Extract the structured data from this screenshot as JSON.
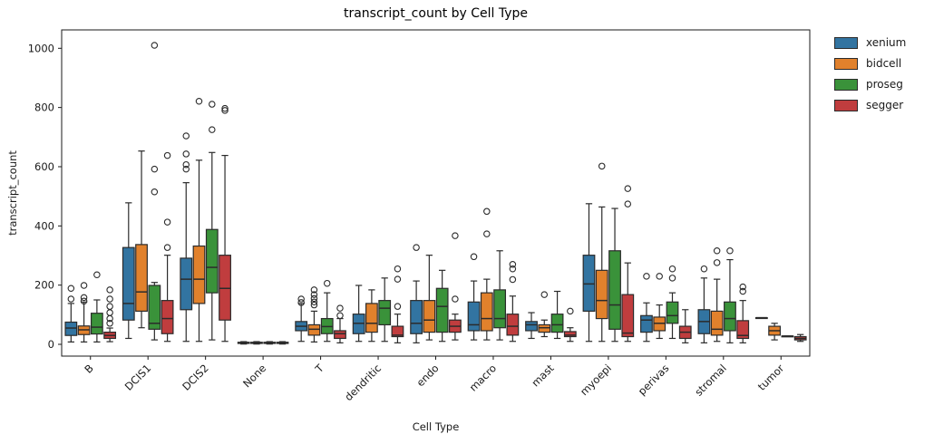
{
  "chart_data": {
    "type": "box",
    "title": "transcript_count by Cell Type",
    "xlabel": "Cell Type",
    "ylabel": "transcript_count",
    "ylim": [
      -40,
      1060
    ],
    "y_ticks": [
      0,
      200,
      400,
      600,
      800,
      1000
    ],
    "grid": false,
    "legend_position": "upper-right-outside",
    "categories": [
      "B",
      "DCIS1",
      "DCIS2",
      "None",
      "T",
      "dendritic",
      "endo",
      "macro",
      "mast",
      "myoepi",
      "perivas",
      "stromal",
      "tumor"
    ],
    "series": [
      {
        "name": "xenium",
        "color": "#3274A1",
        "boxes": [
          {
            "lo": 8,
            "q1": 30,
            "med": 55,
            "q3": 75,
            "hi": 138,
            "out": [
              153,
              189
            ]
          },
          {
            "lo": 20,
            "q1": 82,
            "med": 138,
            "q3": 327,
            "hi": 478,
            "out": []
          },
          {
            "lo": 10,
            "q1": 117,
            "med": 220,
            "q3": 291,
            "hi": 546,
            "out": [
              592,
              607,
              643,
              704
            ]
          },
          {
            "lo": 1,
            "q1": 3,
            "med": 5,
            "q3": 7,
            "hi": 9,
            "out": []
          },
          {
            "lo": 10,
            "q1": 46,
            "med": 61,
            "q3": 77,
            "hi": 138,
            "out": [
              141,
              153
            ]
          },
          {
            "lo": 10,
            "q1": 36,
            "med": 71,
            "q3": 102,
            "hi": 199,
            "out": []
          },
          {
            "lo": 5,
            "q1": 36,
            "med": 71,
            "q3": 148,
            "hi": 214,
            "out": [
              327
            ]
          },
          {
            "lo": 15,
            "q1": 46,
            "med": 66,
            "q3": 143,
            "hi": 214,
            "out": [
              296
            ]
          },
          {
            "lo": 20,
            "q1": 46,
            "med": 66,
            "q3": 77,
            "hi": 107,
            "out": []
          },
          {
            "lo": 10,
            "q1": 112,
            "med": 204,
            "q3": 301,
            "hi": 475,
            "out": []
          },
          {
            "lo": 10,
            "q1": 41,
            "med": 82,
            "q3": 97,
            "hi": 140,
            "out": [
              230
            ]
          },
          {
            "lo": 5,
            "q1": 36,
            "med": 77,
            "q3": 117,
            "hi": 224,
            "out": [
              255
            ]
          },
          {
            "lo": 90,
            "q1": 90,
            "med": 90,
            "q3": 90,
            "hi": 90,
            "out": []
          }
        ]
      },
      {
        "name": "bidcell",
        "color": "#E1812C",
        "boxes": [
          {
            "lo": 8,
            "q1": 33,
            "med": 49,
            "q3": 62,
            "hi": 143,
            "out": [
              146,
              158,
              199
            ]
          },
          {
            "lo": 56,
            "q1": 112,
            "med": 177,
            "q3": 337,
            "hi": 653,
            "out": []
          },
          {
            "lo": 10,
            "q1": 138,
            "med": 220,
            "q3": 332,
            "hi": 622,
            "out": [
              821
            ]
          },
          {
            "lo": 1,
            "q1": 3,
            "med": 5,
            "q3": 7,
            "hi": 9,
            "out": []
          },
          {
            "lo": 8,
            "q1": 31,
            "med": 51,
            "q3": 66,
            "hi": 112,
            "out": [
              133,
              143,
              155,
              168,
              184
            ]
          },
          {
            "lo": 10,
            "q1": 41,
            "med": 71,
            "q3": 138,
            "hi": 184,
            "out": []
          },
          {
            "lo": 15,
            "q1": 41,
            "med": 82,
            "q3": 148,
            "hi": 301,
            "out": []
          },
          {
            "lo": 15,
            "q1": 46,
            "med": 87,
            "q3": 174,
            "hi": 220,
            "out": [
              373,
              449
            ]
          },
          {
            "lo": 26,
            "q1": 41,
            "med": 56,
            "q3": 66,
            "hi": 82,
            "out": [
              168
            ]
          },
          {
            "lo": 10,
            "q1": 87,
            "med": 148,
            "q3": 250,
            "hi": 464,
            "out": [
              602
            ]
          },
          {
            "lo": 20,
            "q1": 46,
            "med": 71,
            "q3": 92,
            "hi": 133,
            "out": [
              230
            ]
          },
          {
            "lo": 10,
            "q1": 31,
            "med": 51,
            "q3": 112,
            "hi": 220,
            "out": [
              276,
              316
            ]
          },
          {
            "lo": 15,
            "q1": 31,
            "med": 46,
            "q3": 61,
            "hi": 71,
            "out": []
          }
        ]
      },
      {
        "name": "proseg",
        "color": "#3A923A",
        "boxes": [
          {
            "lo": 8,
            "q1": 35,
            "med": 58,
            "q3": 105,
            "hi": 150,
            "out": [
              235
            ]
          },
          {
            "lo": 15,
            "q1": 51,
            "med": 71,
            "q3": 199,
            "hi": 209,
            "out": [
              515,
              592,
              1010
            ]
          },
          {
            "lo": 15,
            "q1": 174,
            "med": 260,
            "q3": 388,
            "hi": 648,
            "out": [
              725,
              811
            ]
          },
          {
            "lo": 1,
            "q1": 3,
            "med": 5,
            "q3": 7,
            "hi": 9,
            "out": []
          },
          {
            "lo": 10,
            "q1": 36,
            "med": 60,
            "q3": 87,
            "hi": 174,
            "out": [
              206
            ]
          },
          {
            "lo": 10,
            "q1": 66,
            "med": 122,
            "q3": 148,
            "hi": 224,
            "out": []
          },
          {
            "lo": 10,
            "q1": 41,
            "med": 128,
            "q3": 189,
            "hi": 250,
            "out": []
          },
          {
            "lo": 15,
            "q1": 56,
            "med": 87,
            "q3": 184,
            "hi": 316,
            "out": []
          },
          {
            "lo": 20,
            "q1": 41,
            "med": 66,
            "q3": 102,
            "hi": 179,
            "out": []
          },
          {
            "lo": 10,
            "q1": 51,
            "med": 133,
            "q3": 316,
            "hi": 459,
            "out": []
          },
          {
            "lo": 20,
            "q1": 71,
            "med": 97,
            "q3": 143,
            "hi": 174,
            "out": [
              224,
              255
            ]
          },
          {
            "lo": 5,
            "q1": 46,
            "med": 87,
            "q3": 143,
            "hi": 286,
            "out": [
              316
            ]
          },
          {
            "lo": 28,
            "q1": 28,
            "med": 28,
            "q3": 28,
            "hi": 28,
            "out": []
          }
        ]
      },
      {
        "name": "segger",
        "color": "#C03D3E",
        "boxes": [
          {
            "lo": 9,
            "q1": 20,
            "med": 30,
            "q3": 41,
            "hi": 55,
            "out": [
              71,
              87,
              107,
              128,
              153,
              184
            ]
          },
          {
            "lo": 10,
            "q1": 36,
            "med": 87,
            "q3": 148,
            "hi": 301,
            "out": [
              327,
              413,
              638
            ]
          },
          {
            "lo": 10,
            "q1": 82,
            "med": 189,
            "q3": 301,
            "hi": 638,
            "out": [
              790,
              797
            ]
          },
          {
            "lo": 1,
            "q1": 3,
            "med": 5,
            "q3": 7,
            "hi": 9,
            "out": []
          },
          {
            "lo": 5,
            "q1": 20,
            "med": 36,
            "q3": 46,
            "hi": 87,
            "out": [
              97,
              122
            ]
          },
          {
            "lo": 5,
            "q1": 26,
            "med": 31,
            "q3": 61,
            "hi": 102,
            "out": [
              128,
              220,
              255
            ]
          },
          {
            "lo": 15,
            "q1": 41,
            "med": 61,
            "q3": 82,
            "hi": 102,
            "out": [
              153,
              367
            ]
          },
          {
            "lo": 10,
            "q1": 31,
            "med": 61,
            "q3": 102,
            "hi": 163,
            "out": [
              219,
              255,
              270
            ]
          },
          {
            "lo": 10,
            "q1": 26,
            "med": 31,
            "q3": 43,
            "hi": 56,
            "out": [
              112
            ]
          },
          {
            "lo": 10,
            "q1": 26,
            "med": 38,
            "q3": 168,
            "hi": 275,
            "out": [
              474,
              526
            ]
          },
          {
            "lo": 5,
            "q1": 20,
            "med": 41,
            "q3": 61,
            "hi": 117,
            "out": []
          },
          {
            "lo": 5,
            "q1": 20,
            "med": 30,
            "q3": 80,
            "hi": 148,
            "out": [
              179,
              194
            ]
          },
          {
            "lo": 10,
            "q1": 15,
            "med": 20,
            "q3": 26,
            "hi": 33,
            "out": []
          }
        ]
      }
    ]
  }
}
